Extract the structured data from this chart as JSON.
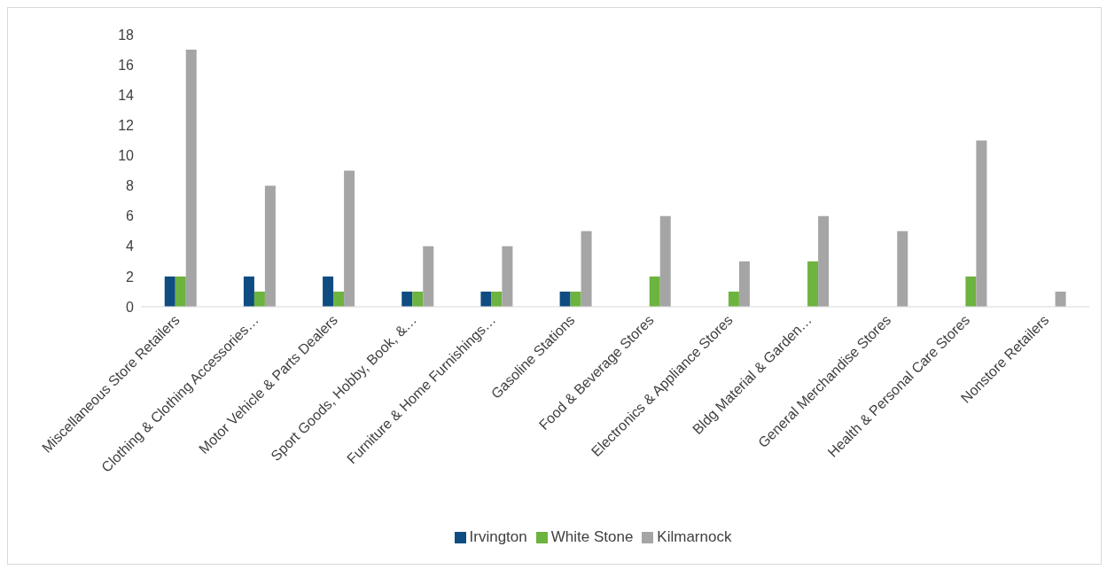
{
  "chart_data": {
    "type": "bar",
    "categories": [
      "Miscellaneous Store Retailers",
      "Clothing & Clothing Accessories…",
      "Motor Vehicle & Parts Dealers",
      "Sport Goods, Hobby, Book, &…",
      "Furniture & Home Furnishings…",
      "Gasoline Stations",
      "Food & Beverage Stores",
      "Electronics & Appliance Stores",
      "Bldg Material & Garden…",
      "General Merchandise Stores",
      "Health & Personal Care Stores",
      "Nonstore Retailers"
    ],
    "series": [
      {
        "name": "Irvington",
        "color": "#0f4c81",
        "values": [
          2,
          2,
          2,
          1,
          1,
          1,
          null,
          null,
          null,
          null,
          null,
          null
        ]
      },
      {
        "name": "White Stone",
        "color": "#6db33f",
        "values": [
          2,
          1,
          1,
          1,
          1,
          1,
          2,
          1,
          3,
          null,
          2,
          null
        ]
      },
      {
        "name": "Kilmarnock",
        "color": "#a5a5a5",
        "values": [
          17,
          8,
          9,
          4,
          4,
          5,
          6,
          3,
          6,
          5,
          11,
          1
        ]
      }
    ],
    "ylim": [
      0,
      18
    ],
    "yticks": [
      0,
      2,
      4,
      6,
      8,
      10,
      12,
      14,
      16,
      18
    ],
    "legend": "bottom"
  }
}
